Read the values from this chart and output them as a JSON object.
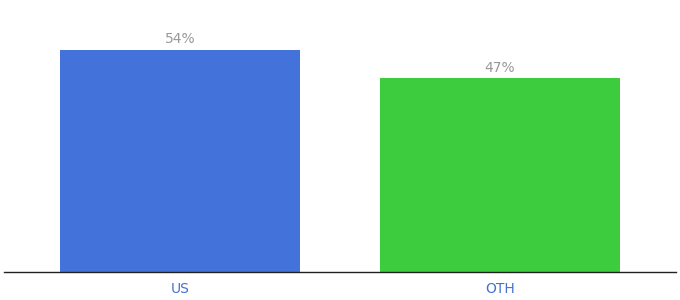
{
  "categories": [
    "US",
    "OTH"
  ],
  "values": [
    54,
    47
  ],
  "bar_colors": [
    "#4472db",
    "#3dcc3d"
  ],
  "label_texts": [
    "54%",
    "47%"
  ],
  "ylim": [
    0,
    65
  ],
  "background_color": "#ffffff",
  "tick_color": "#4472cc",
  "label_color": "#999999",
  "bar_width": 0.75,
  "label_fontsize": 10,
  "tick_fontsize": 10
}
